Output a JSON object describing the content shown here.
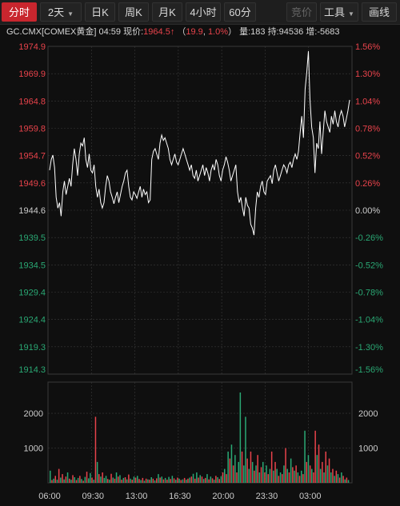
{
  "toolbar": {
    "items": [
      {
        "label": "分时",
        "active": true,
        "dropdown": false
      },
      {
        "label": "2天",
        "active": false,
        "dropdown": true
      },
      {
        "label": "日K",
        "active": false,
        "dropdown": false
      },
      {
        "label": "周K",
        "active": false,
        "dropdown": false
      },
      {
        "label": "月K",
        "active": false,
        "dropdown": false
      },
      {
        "label": "4小时",
        "active": false,
        "dropdown": false
      },
      {
        "label": "60分",
        "active": false,
        "dropdown": false
      }
    ],
    "bid_label": "竞价",
    "tools_label": "工具",
    "draw_label": "画线"
  },
  "quote": {
    "symbol": "GC.CMX[COMEX黄金]",
    "time": "04:59",
    "price_label": "现价:",
    "price": "1964.5",
    "change": "19.9",
    "change_pct": "1.0%",
    "volume_label": "量:183",
    "open_interest_label": "持:94536",
    "oi_change_label": "增:-5683"
  },
  "colors": {
    "up": "#e8434b",
    "down": "#2aa874",
    "line": "#ffffff",
    "grid": "#3a3a3a",
    "neutral": "#cccccc"
  },
  "chart_data": {
    "type": "line",
    "price_axis": [
      "1974.9",
      "1969.9",
      "1964.8",
      "1959.8",
      "1954.7",
      "1949.6",
      "1944.6",
      "1939.5",
      "1934.5",
      "1929.4",
      "1924.4",
      "1919.3",
      "1914.3"
    ],
    "pct_axis": [
      "1.56%",
      "1.30%",
      "1.04%",
      "0.78%",
      "0.52%",
      "0.26%",
      "0.00%",
      "-0.26%",
      "-0.52%",
      "-0.78%",
      "-1.04%",
      "-1.30%",
      "-1.56%"
    ],
    "ylim": [
      1914.3,
      1974.9
    ],
    "base_price": 1944.6,
    "x_ticks": [
      "06:00",
      "09:30",
      "13:00",
      "16:30",
      "20:00",
      "23:30",
      "03:00"
    ],
    "price_series": [
      1952,
      1954,
      1954.8,
      1952.5,
      1947,
      1945,
      1946,
      1943.5,
      1948,
      1950,
      1947.5,
      1949,
      1950.5,
      1949,
      1953,
      1956,
      1954,
      1951,
      1955,
      1957,
      1956.5,
      1958,
      1954,
      1952.5,
      1955,
      1952,
      1951.5,
      1953,
      1949,
      1947,
      1948.5,
      1946,
      1945,
      1946,
      1949,
      1951,
      1950,
      1948,
      1947,
      1945.8,
      1947,
      1948,
      1946,
      1947.5,
      1949,
      1950,
      1951.5,
      1952,
      1949,
      1947,
      1946.5,
      1948,
      1947.5,
      1946.8,
      1948,
      1949,
      1947,
      1948.5,
      1947.5,
      1948,
      1946,
      1946.5,
      1954,
      1955.5,
      1956,
      1955,
      1954,
      1957,
      1958.5,
      1957.5,
      1958,
      1957,
      1956,
      1954,
      1953,
      1954,
      1955,
      1953.5,
      1953,
      1954,
      1955,
      1956,
      1955,
      1954,
      1953,
      1952,
      1953,
      1951,
      1950.5,
      1952,
      1950,
      1951,
      1952,
      1953,
      1951,
      1952.5,
      1951.5,
      1950,
      1952,
      1953,
      1952,
      1954,
      1953,
      1951,
      1950,
      1952,
      1953,
      1954.5,
      1953.5,
      1952,
      1950,
      1951,
      1952,
      1953,
      1948,
      1946,
      1947,
      1945,
      1943.5,
      1947,
      1945.5,
      1945,
      1942,
      1941.3,
      1940,
      1945,
      1948,
      1947,
      1949,
      1950,
      1948,
      1947.5,
      1950,
      1950.5,
      1951,
      1949.5,
      1952,
      1953,
      1951.5,
      1950,
      1951,
      1952,
      1953,
      1952.5,
      1951.5,
      1953,
      1953.5,
      1952.5,
      1954,
      1955,
      1954,
      1955.5,
      1959,
      1962,
      1958,
      1967,
      1970,
      1974,
      1965,
      1960,
      1958,
      1951.5,
      1957,
      1956,
      1961,
      1955,
      1959,
      1963,
      1961,
      1960,
      1959,
      1962,
      1960.5,
      1963,
      1961,
      1960,
      1962,
      1963,
      1962,
      1960,
      1961.5,
      1963,
      1965
    ],
    "volume_axis": [
      "2000",
      "1000"
    ],
    "volume_max": 2900,
    "volume_series": [
      {
        "v": 350,
        "d": 1
      },
      {
        "v": 80,
        "d": 0
      },
      {
        "v": 120,
        "d": 1
      },
      {
        "v": 200,
        "d": 0
      },
      {
        "v": 90,
        "d": 1
      },
      {
        "v": 400,
        "d": 0
      },
      {
        "v": 150,
        "d": 1
      },
      {
        "v": 250,
        "d": 0
      },
      {
        "v": 100,
        "d": 1
      },
      {
        "v": 180,
        "d": 0
      },
      {
        "v": 300,
        "d": 1
      },
      {
        "v": 120,
        "d": 0
      },
      {
        "v": 90,
        "d": 1
      },
      {
        "v": 220,
        "d": 0
      },
      {
        "v": 160,
        "d": 1
      },
      {
        "v": 80,
        "d": 0
      },
      {
        "v": 140,
        "d": 1
      },
      {
        "v": 200,
        "d": 0
      },
      {
        "v": 110,
        "d": 1
      },
      {
        "v": 60,
        "d": 0
      },
      {
        "v": 170,
        "d": 1
      },
      {
        "v": 320,
        "d": 0
      },
      {
        "v": 130,
        "d": 1
      },
      {
        "v": 280,
        "d": 1
      },
      {
        "v": 150,
        "d": 0
      },
      {
        "v": 90,
        "d": 1
      },
      {
        "v": 1900,
        "d": 0
      },
      {
        "v": 600,
        "d": 1
      },
      {
        "v": 250,
        "d": 0
      },
      {
        "v": 180,
        "d": 1
      },
      {
        "v": 300,
        "d": 0
      },
      {
        "v": 140,
        "d": 1
      },
      {
        "v": 200,
        "d": 1
      },
      {
        "v": 110,
        "d": 0
      },
      {
        "v": 90,
        "d": 1
      },
      {
        "v": 260,
        "d": 0
      },
      {
        "v": 150,
        "d": 1
      },
      {
        "v": 120,
        "d": 0
      },
      {
        "v": 300,
        "d": 1
      },
      {
        "v": 180,
        "d": 0
      },
      {
        "v": 220,
        "d": 1
      },
      {
        "v": 90,
        "d": 0
      },
      {
        "v": 140,
        "d": 1
      },
      {
        "v": 160,
        "d": 0
      },
      {
        "v": 100,
        "d": 1
      },
      {
        "v": 240,
        "d": 0
      },
      {
        "v": 120,
        "d": 1
      },
      {
        "v": 90,
        "d": 0
      },
      {
        "v": 180,
        "d": 1
      },
      {
        "v": 150,
        "d": 0
      },
      {
        "v": 200,
        "d": 1
      },
      {
        "v": 110,
        "d": 0
      },
      {
        "v": 80,
        "d": 1
      },
      {
        "v": 140,
        "d": 0
      },
      {
        "v": 60,
        "d": 1
      },
      {
        "v": 120,
        "d": 0
      },
      {
        "v": 100,
        "d": 1
      },
      {
        "v": 90,
        "d": 0
      },
      {
        "v": 160,
        "d": 1
      },
      {
        "v": 120,
        "d": 0
      },
      {
        "v": 70,
        "d": 1
      },
      {
        "v": 130,
        "d": 0
      },
      {
        "v": 250,
        "d": 1
      },
      {
        "v": 150,
        "d": 0
      },
      {
        "v": 180,
        "d": 1
      },
      {
        "v": 100,
        "d": 0
      },
      {
        "v": 140,
        "d": 1
      },
      {
        "v": 90,
        "d": 0
      },
      {
        "v": 170,
        "d": 1
      },
      {
        "v": 110,
        "d": 0
      },
      {
        "v": 200,
        "d": 1
      },
      {
        "v": 130,
        "d": 0
      },
      {
        "v": 90,
        "d": 1
      },
      {
        "v": 150,
        "d": 0
      },
      {
        "v": 120,
        "d": 1
      },
      {
        "v": 80,
        "d": 0
      },
      {
        "v": 100,
        "d": 1
      },
      {
        "v": 140,
        "d": 0
      },
      {
        "v": 90,
        "d": 1
      },
      {
        "v": 120,
        "d": 0
      },
      {
        "v": 150,
        "d": 1
      },
      {
        "v": 180,
        "d": 0
      },
      {
        "v": 260,
        "d": 1
      },
      {
        "v": 120,
        "d": 0
      },
      {
        "v": 300,
        "d": 1
      },
      {
        "v": 150,
        "d": 0
      },
      {
        "v": 220,
        "d": 1
      },
      {
        "v": 180,
        "d": 0
      },
      {
        "v": 110,
        "d": 1
      },
      {
        "v": 140,
        "d": 0
      },
      {
        "v": 250,
        "d": 1
      },
      {
        "v": 100,
        "d": 0
      },
      {
        "v": 180,
        "d": 1
      },
      {
        "v": 130,
        "d": 0
      },
      {
        "v": 90,
        "d": 1
      },
      {
        "v": 200,
        "d": 0
      },
      {
        "v": 160,
        "d": 1
      },
      {
        "v": 110,
        "d": 0
      },
      {
        "v": 190,
        "d": 1
      },
      {
        "v": 300,
        "d": 0
      },
      {
        "v": 400,
        "d": 1
      },
      {
        "v": 250,
        "d": 0
      },
      {
        "v": 900,
        "d": 1
      },
      {
        "v": 700,
        "d": 0
      },
      {
        "v": 1100,
        "d": 1
      },
      {
        "v": 500,
        "d": 0
      },
      {
        "v": 800,
        "d": 1
      },
      {
        "v": 300,
        "d": 0
      },
      {
        "v": 600,
        "d": 1
      },
      {
        "v": 2600,
        "d": 1
      },
      {
        "v": 900,
        "d": 0
      },
      {
        "v": 500,
        "d": 1
      },
      {
        "v": 1900,
        "d": 1
      },
      {
        "v": 700,
        "d": 0
      },
      {
        "v": 400,
        "d": 1
      },
      {
        "v": 900,
        "d": 0
      },
      {
        "v": 600,
        "d": 1
      },
      {
        "v": 350,
        "d": 0
      },
      {
        "v": 500,
        "d": 1
      },
      {
        "v": 800,
        "d": 0
      },
      {
        "v": 300,
        "d": 1
      },
      {
        "v": 450,
        "d": 0
      },
      {
        "v": 600,
        "d": 1
      },
      {
        "v": 300,
        "d": 0
      },
      {
        "v": 500,
        "d": 1
      },
      {
        "v": 250,
        "d": 0
      },
      {
        "v": 400,
        "d": 1
      },
      {
        "v": 900,
        "d": 0
      },
      {
        "v": 350,
        "d": 1
      },
      {
        "v": 600,
        "d": 0
      },
      {
        "v": 400,
        "d": 1
      },
      {
        "v": 200,
        "d": 0
      },
      {
        "v": 300,
        "d": 1
      },
      {
        "v": 250,
        "d": 0
      },
      {
        "v": 500,
        "d": 1
      },
      {
        "v": 1000,
        "d": 0
      },
      {
        "v": 400,
        "d": 1
      },
      {
        "v": 300,
        "d": 0
      },
      {
        "v": 700,
        "d": 1
      },
      {
        "v": 450,
        "d": 0
      },
      {
        "v": 350,
        "d": 1
      },
      {
        "v": 500,
        "d": 0
      },
      {
        "v": 300,
        "d": 1
      },
      {
        "v": 200,
        "d": 0
      },
      {
        "v": 350,
        "d": 1
      },
      {
        "v": 250,
        "d": 0
      },
      {
        "v": 1500,
        "d": 1
      },
      {
        "v": 600,
        "d": 0
      },
      {
        "v": 800,
        "d": 1
      },
      {
        "v": 500,
        "d": 0
      },
      {
        "v": 400,
        "d": 1
      },
      {
        "v": 300,
        "d": 0
      },
      {
        "v": 1500,
        "d": 0
      },
      {
        "v": 800,
        "d": 1
      },
      {
        "v": 1100,
        "d": 0
      },
      {
        "v": 400,
        "d": 1
      },
      {
        "v": 600,
        "d": 0
      },
      {
        "v": 300,
        "d": 1
      },
      {
        "v": 900,
        "d": 0
      },
      {
        "v": 500,
        "d": 1
      },
      {
        "v": 700,
        "d": 0
      },
      {
        "v": 300,
        "d": 1
      },
      {
        "v": 400,
        "d": 0
      },
      {
        "v": 200,
        "d": 1
      },
      {
        "v": 350,
        "d": 0
      },
      {
        "v": 250,
        "d": 1
      },
      {
        "v": 150,
        "d": 0
      },
      {
        "v": 300,
        "d": 1
      },
      {
        "v": 200,
        "d": 0
      },
      {
        "v": 100,
        "d": 1
      },
      {
        "v": 150,
        "d": 0
      },
      {
        "v": 80,
        "d": 1
      }
    ]
  }
}
